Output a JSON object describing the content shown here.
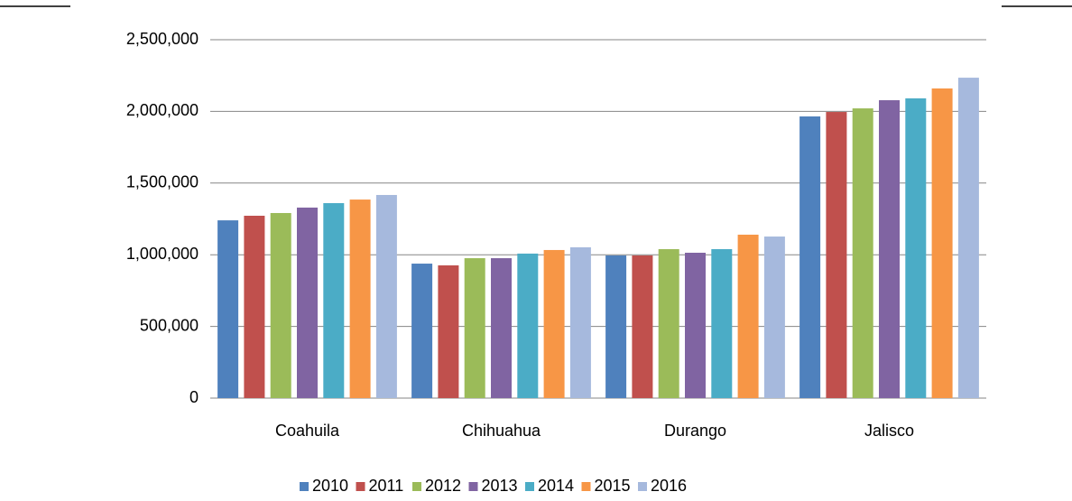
{
  "chart_data": {
    "type": "bar",
    "categories": [
      "Coahuila",
      "Chihuahua",
      "Durango",
      "Jalisco"
    ],
    "series": [
      {
        "name": "2010",
        "color": "#4f81bd",
        "values": [
          1240000,
          938000,
          995000,
          1965000
        ]
      },
      {
        "name": "2011",
        "color": "#c0504d",
        "values": [
          1272000,
          926000,
          995000,
          1996000
        ]
      },
      {
        "name": "2012",
        "color": "#9bbb59",
        "values": [
          1291000,
          976000,
          1039000,
          2021000
        ]
      },
      {
        "name": "2013",
        "color": "#8064a2",
        "values": [
          1329000,
          976000,
          1014000,
          2078000
        ]
      },
      {
        "name": "2014",
        "color": "#4bacc6",
        "values": [
          1360000,
          1008000,
          1039000,
          2091000
        ]
      },
      {
        "name": "2015",
        "color": "#f79646",
        "values": [
          1385000,
          1033000,
          1140000,
          2160000
        ]
      },
      {
        "name": "2016",
        "color": "#a6b9dd",
        "values": [
          1417000,
          1052000,
          1127000,
          2235000
        ]
      }
    ],
    "ylim": [
      0,
      2500000
    ],
    "yticks": [
      0,
      {
        "value": 500000,
        "label": "500,000"
      },
      {
        "value": 1000000,
        "label": "1,000,000"
      },
      {
        "value": 1500000,
        "label": "1,500,000"
      },
      {
        "value": 2000000,
        "label": "2,000,000"
      },
      {
        "value": 2500000,
        "label": "2,500,000"
      }
    ],
    "grid": true,
    "legend": "bottom"
  }
}
